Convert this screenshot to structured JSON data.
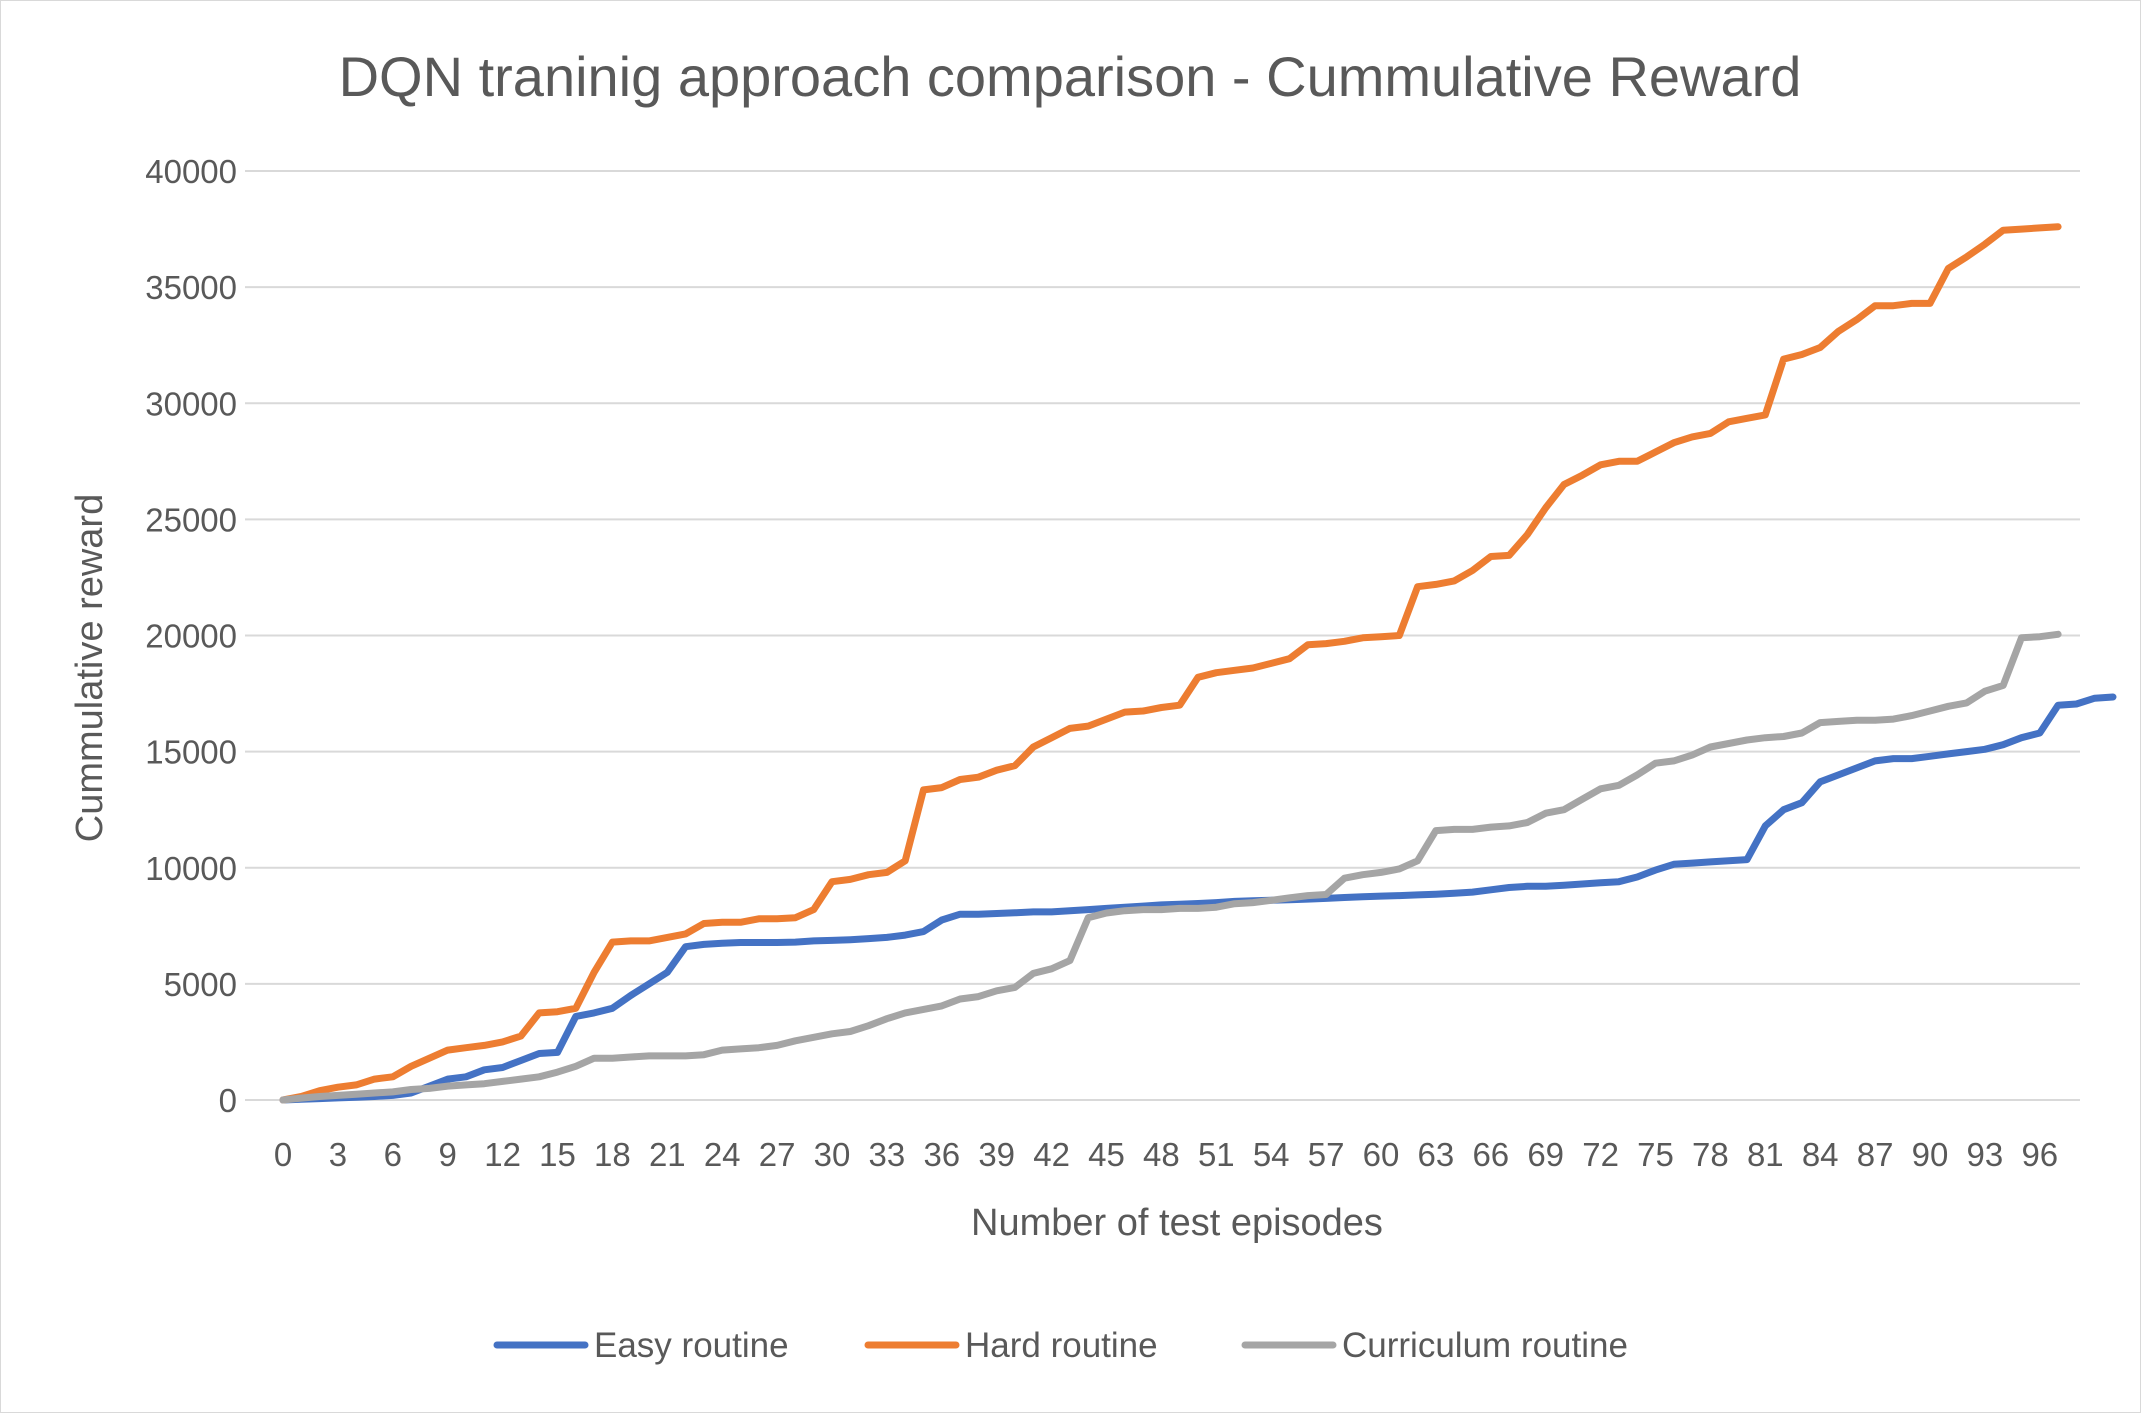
{
  "chart_data": {
    "type": "line",
    "title": "DQN traninig approach comparison - Cummulative Reward",
    "xlabel": "Number of test episodes",
    "ylabel": "Cummulative reward",
    "ylim": [
      0,
      40000
    ],
    "yticks": [
      "0",
      "5000",
      "10000",
      "15000",
      "20000",
      "25000",
      "30000",
      "35000",
      "40000"
    ],
    "xticks": [
      "0",
      "3",
      "6",
      "9",
      "12",
      "15",
      "18",
      "21",
      "24",
      "27",
      "30",
      "33",
      "36",
      "39",
      "42",
      "45",
      "48",
      "51",
      "54",
      "57",
      "60",
      "63",
      "66",
      "69",
      "72",
      "75",
      "78",
      "81",
      "84",
      "87",
      "90",
      "93",
      "96"
    ],
    "xlim": [
      0,
      98
    ],
    "grid": true,
    "legend_position": "bottom",
    "colors": {
      "Easy routine": "#4472c4",
      "Hard routine": "#ed7d31",
      "Curriculum routine": "#a5a5a5",
      "grid": "#d9d9d9",
      "text": "#595959"
    },
    "series": [
      {
        "name": "Easy routine",
        "values": [
          0,
          30,
          60,
          90,
          120,
          150,
          200,
          300,
          600,
          900,
          1000,
          1300,
          1400,
          1700,
          2000,
          2050,
          3600,
          3750,
          3950,
          4500,
          5000,
          5500,
          6600,
          6700,
          6750,
          6780,
          6780,
          6780,
          6800,
          6850,
          6870,
          6900,
          6950,
          7000,
          7100,
          7250,
          7750,
          8000,
          8000,
          8030,
          8060,
          8100,
          8100,
          8150,
          8200,
          8250,
          8300,
          8350,
          8400,
          8430,
          8460,
          8500,
          8550,
          8580,
          8600,
          8620,
          8650,
          8680,
          8720,
          8750,
          8780,
          8800,
          8830,
          8860,
          8900,
          8950,
          9050,
          9150,
          9200,
          9200,
          9250,
          9300,
          9350,
          9400,
          9600,
          9900,
          10150,
          10200,
          10250,
          10300,
          10350,
          11800,
          12500,
          12800,
          13700,
          14000,
          14300,
          14600,
          14700,
          14700,
          14800,
          14900,
          15000,
          15100,
          15300,
          15600,
          15800,
          17000,
          17050,
          17300,
          17350
        ]
      },
      {
        "name": "Hard routine",
        "values": [
          0,
          150,
          400,
          550,
          650,
          900,
          1000,
          1450,
          1800,
          2150,
          2250,
          2350,
          2500,
          2750,
          3750,
          3800,
          3950,
          5500,
          6800,
          6850,
          6850,
          7000,
          7150,
          7600,
          7650,
          7650,
          7800,
          7800,
          7850,
          8200,
          9400,
          9500,
          9700,
          9800,
          10300,
          13350,
          13450,
          13800,
          13900,
          14200,
          14400,
          15200,
          15600,
          16000,
          16100,
          16400,
          16700,
          16750,
          16900,
          17000,
          18200,
          18400,
          18500,
          18600,
          18800,
          19000,
          19600,
          19650,
          19750,
          19900,
          19950,
          20000,
          22100,
          22200,
          22350,
          22800,
          23400,
          23450,
          24350,
          25500,
          26500,
          26900,
          27350,
          27500,
          27500,
          27900,
          28300,
          28550,
          28700,
          29200,
          29350,
          29500,
          31900,
          32100,
          32400,
          33100,
          33600,
          34200,
          34200,
          34300,
          34300,
          35800,
          36300,
          36850,
          37450,
          37500,
          37550,
          37600
        ]
      },
      {
        "name": "Curriculum routine",
        "values": [
          0,
          80,
          150,
          200,
          250,
          300,
          350,
          450,
          500,
          600,
          650,
          700,
          800,
          900,
          1000,
          1200,
          1450,
          1800,
          1800,
          1850,
          1900,
          1900,
          1900,
          1950,
          2150,
          2200,
          2250,
          2350,
          2550,
          2700,
          2850,
          2950,
          3200,
          3500,
          3750,
          3900,
          4050,
          4350,
          4450,
          4700,
          4850,
          5450,
          5650,
          6000,
          7850,
          8050,
          8150,
          8200,
          8200,
          8250,
          8250,
          8300,
          8450,
          8500,
          8600,
          8700,
          8800,
          8850,
          9550,
          9700,
          9800,
          9950,
          10300,
          11600,
          11650,
          11650,
          11750,
          11800,
          11950,
          12350,
          12500,
          12950,
          13400,
          13550,
          14000,
          14500,
          14600,
          14850,
          15200,
          15350,
          15500,
          15600,
          15650,
          15800,
          16250,
          16300,
          16350,
          16350,
          16400,
          16550,
          16750,
          16950,
          17100,
          17600,
          17850,
          19900,
          19950,
          20050
        ]
      }
    ]
  }
}
